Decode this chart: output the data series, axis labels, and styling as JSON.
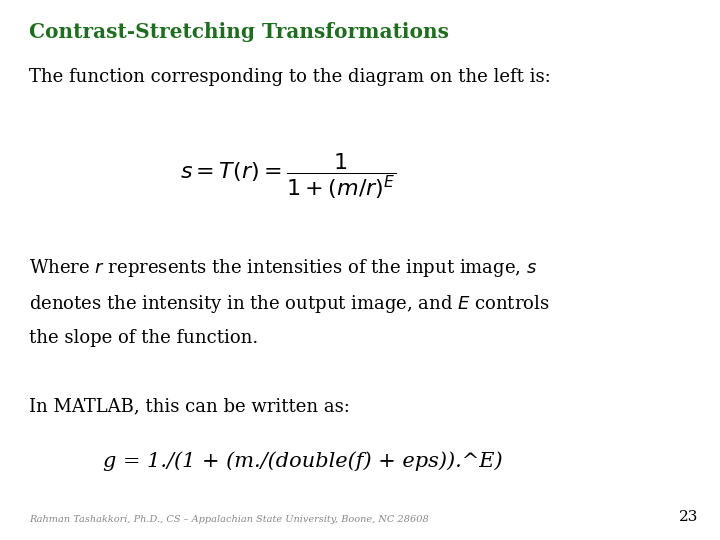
{
  "background_color": "#ffffff",
  "title": "Contrast-Stretching Transformations",
  "title_color": "#1f6e1f",
  "title_fontsize": 14.5,
  "subtitle": "The function corresponding to the diagram on the left is:",
  "subtitle_fontsize": 13,
  "formula_fontsize": 16,
  "body_fontsize": 13,
  "matlab_intro": "In MATLAB, this can be written as:",
  "matlab_intro_fontsize": 13,
  "matlab_code": "g = 1./(1 + (m./(double(f) + eps)).^E)",
  "matlab_code_fontsize": 15,
  "footer_text": "Rahman Tashakkori, Ph.D., CS – Appalachian State University, Boone, NC 28608",
  "footer_fontsize": 7,
  "page_number": "23",
  "page_number_fontsize": 11,
  "text_color": "#000000",
  "footer_color": "#888888"
}
